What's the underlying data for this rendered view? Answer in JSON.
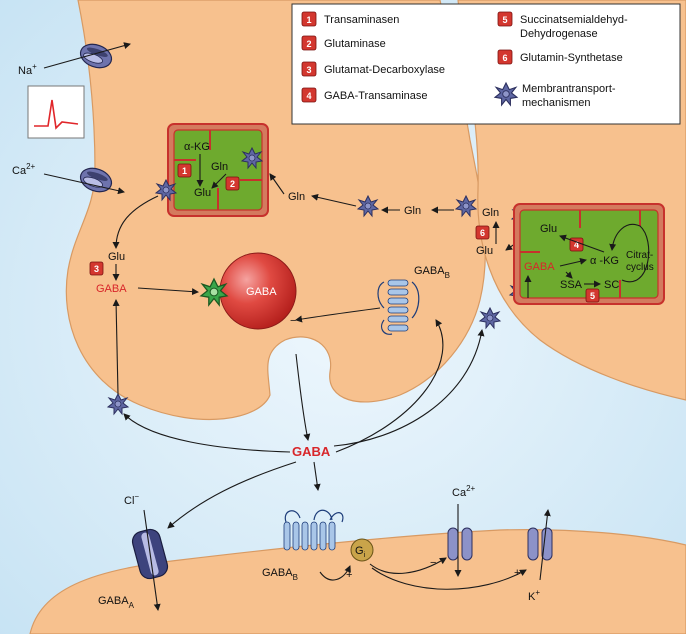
{
  "legend": {
    "items": [
      {
        "num": "1",
        "text": "Transaminasen"
      },
      {
        "num": "2",
        "text": "Glutaminase"
      },
      {
        "num": "3",
        "text": "Glutamat-Decarboxylase"
      },
      {
        "num": "4",
        "text": "GABA-Transaminase"
      },
      {
        "num": "5",
        "line1": "Succinatsemialdehyd-",
        "line2": "Dehydrogenase"
      },
      {
        "num": "6",
        "text": "Glutamin-Synthetase"
      }
    ],
    "membrane_transport": {
      "line1": "Membrantransport-",
      "line2": "mechanismen"
    }
  },
  "ions": {
    "na": "Na",
    "na_charge": "+",
    "ca": "Ca",
    "ca_charge": "2+",
    "cl": "Cl",
    "cl_charge": "−",
    "ca_post": "Ca",
    "ca_post_charge": "2+",
    "k": "K",
    "k_charge": "+"
  },
  "presynaptic_mito": {
    "akg": "α-KG",
    "gln": "Gln",
    "glu": "Glu",
    "badge1": "1",
    "badge2": "2"
  },
  "presynaptic": {
    "gln_1": "Gln",
    "gln_2": "Gln",
    "glu": "Glu",
    "badge3": "3",
    "gaba": "GABA",
    "vesicle_gaba": "GABA",
    "gabab": "GABA",
    "gabab_sub": "B",
    "minus": "−"
  },
  "glia": {
    "gln": "Gln",
    "glu": "Glu",
    "badge6": "6",
    "mito": {
      "glu": "Glu",
      "gaba": "GABA",
      "akg": "α -KG",
      "badge4": "4",
      "citrat1": "Citrat-",
      "citrat2": "cyclus",
      "ssa": "SSA",
      "sc": "SC",
      "badge5": "5"
    }
  },
  "cleft": {
    "gaba": "GABA"
  },
  "postsynaptic": {
    "gabaa": "GABA",
    "gabaa_sub": "A",
    "gabab": "GABA",
    "gabab_sub": "B",
    "gi": "G",
    "gi_sub": "i",
    "plus1": "+",
    "minus1": "−",
    "plus2": "+"
  },
  "colors": {
    "background": "#d3eaf7",
    "cell": "#f7c18e",
    "cell_edge": "#d89a63",
    "mito_fill": "#6eaa2e",
    "mito_edge": "#c7312c",
    "vesicle": "#d83a32",
    "badge": "#d3372f",
    "transporter": "#4a4f86",
    "red_text": "#d8262a"
  }
}
